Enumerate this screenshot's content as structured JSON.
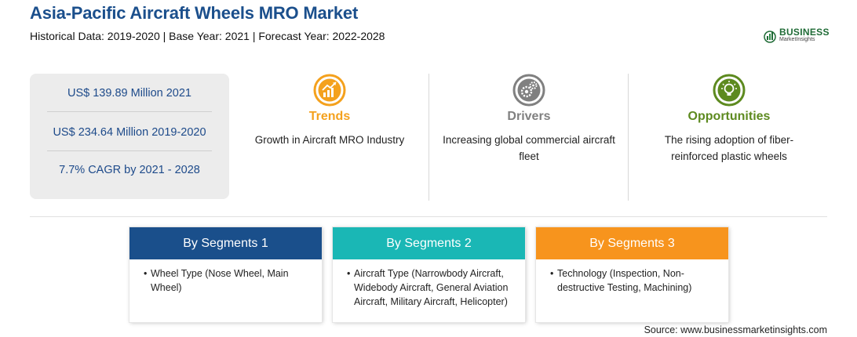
{
  "header": {
    "title": "Asia-Pacific Aircraft Wheels MRO Market",
    "subtitle": "Historical Data: 2019-2020 | Base Year: 2021 | Forecast Year: 2022-2028"
  },
  "logo": {
    "name": "BUSINESS",
    "tagline": "MarketInsights",
    "color": "#1f6b36"
  },
  "stats": [
    {
      "text": "US$ 139.89 Million 2021"
    },
    {
      "text": "US$ 234.64 Million 2019-2020"
    },
    {
      "text": "7.7% CAGR by 2021 - 2028"
    }
  ],
  "insights": [
    {
      "heading": "Trends",
      "text": "Growth in Aircraft MRO Industry",
      "color": "#f4a11d",
      "icon": "trend-chart-icon"
    },
    {
      "heading": "Drivers",
      "text": "Increasing global commercial aircraft fleet",
      "color": "#808080",
      "icon": "gears-icon"
    },
    {
      "heading": "Opportunities",
      "text": "The rising adoption of fiber-reinforced plastic wheels",
      "color": "#5d8a1f",
      "icon": "lightbulb-icon"
    }
  ],
  "segments": [
    {
      "title": "By Segments 1",
      "color": "#1a4f8b",
      "item": "Wheel Type (Nose Wheel, Main Wheel)"
    },
    {
      "title": "By Segments 2",
      "color": "#1ab7b5",
      "item": "Aircraft Type (Narrowbody Aircraft, Widebody Aircraft, General Aviation Aircraft, Military Aircraft, Helicopter)"
    },
    {
      "title": "By Segments 3",
      "color": "#f7941d",
      "item": "Technology (Inspection, Non-destructive Testing, Machining)"
    }
  ],
  "source": "Source: www.businessmarketinsights.com"
}
